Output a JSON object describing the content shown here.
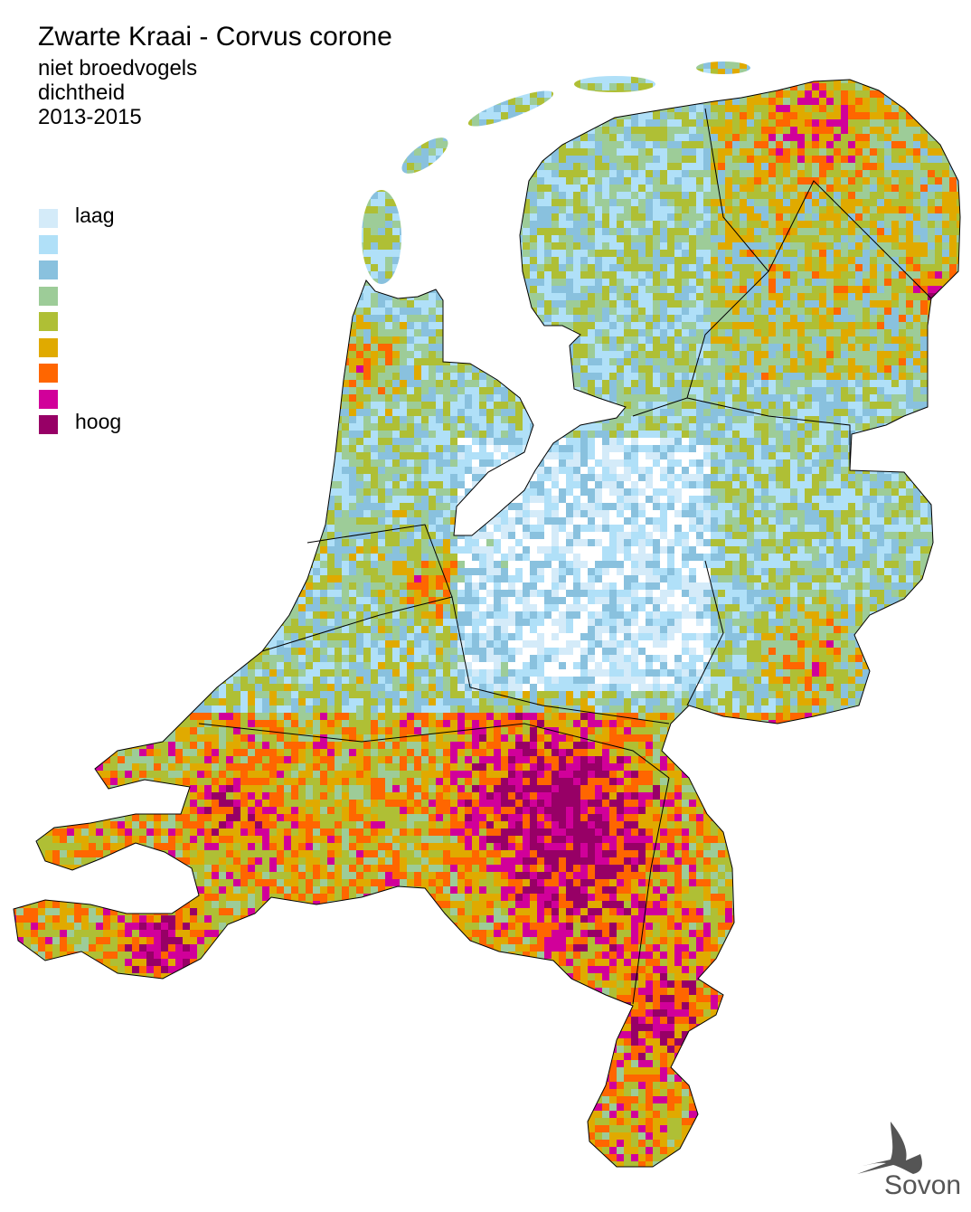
{
  "header": {
    "title": "Zwarte Kraai - Corvus corone",
    "subtitle_lines": [
      "niet broedvogels",
      "dichtheid",
      "2013-2015"
    ]
  },
  "legend": {
    "items": [
      {
        "label": "laag",
        "color": "#d4ebf9"
      },
      {
        "label": "",
        "color": "#b0e0f8"
      },
      {
        "label": "",
        "color": "#89c1de"
      },
      {
        "label": "",
        "color": "#9dcc98"
      },
      {
        "label": "",
        "color": "#afbf35"
      },
      {
        "label": "",
        "color": "#e0aa00"
      },
      {
        "label": "",
        "color": "#ff6600"
      },
      {
        "label": "",
        "color": "#d1009a"
      },
      {
        "label": "hoog",
        "color": "#970066"
      }
    ]
  },
  "logo": {
    "text": "Sovon",
    "icon": "swallow-icon"
  }
}
